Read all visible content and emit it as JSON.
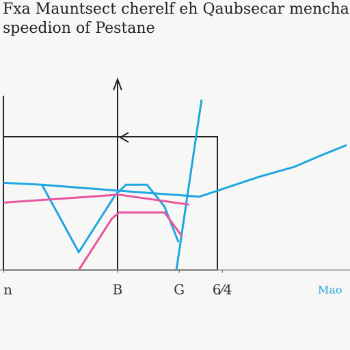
{
  "chart_data": {
    "type": "line",
    "title": "Fxa Mauntsect cherelf eh Qaubsecar mencha",
    "subtitle": "speedion of Pestane",
    "x_label": "Mao",
    "xlim": [
      0,
      100
    ],
    "ylim": [
      0,
      10
    ],
    "xticks": [
      {
        "value": 1,
        "label": "n"
      },
      {
        "value": 33.6,
        "label": "B"
      },
      {
        "value": 51.2,
        "label": "G"
      },
      {
        "value": 63.5,
        "label": "6⁄4"
      }
    ],
    "series": [
      {
        "color": "#1ea6e2",
        "x": [
          1,
          12,
          34,
          57,
          74,
          84,
          92,
          99
        ],
        "values": [
          4.4,
          4.3,
          4.0,
          3.7,
          4.7,
          5.2,
          5.8,
          6.3
        ]
      },
      {
        "color": "#1ea6e2",
        "x": [
          12,
          22.5,
          33,
          36,
          42,
          47,
          51
        ],
        "values": [
          4.3,
          0.9,
          3.8,
          4.3,
          4.3,
          3.2,
          1.4
        ]
      },
      {
        "color": "#1ea6e2",
        "x": [
          50.4,
          57.6
        ],
        "values": [
          0,
          8.6
        ]
      },
      {
        "color": "#e8549e",
        "x": [
          1,
          34,
          54
        ],
        "values": [
          3.4,
          3.8,
          3.3
        ]
      },
      {
        "color": "#e8549e",
        "x": [
          22.5,
          32,
          34,
          47,
          52
        ],
        "values": [
          0,
          2.6,
          2.9,
          2.9,
          1.7
        ]
      }
    ]
  }
}
